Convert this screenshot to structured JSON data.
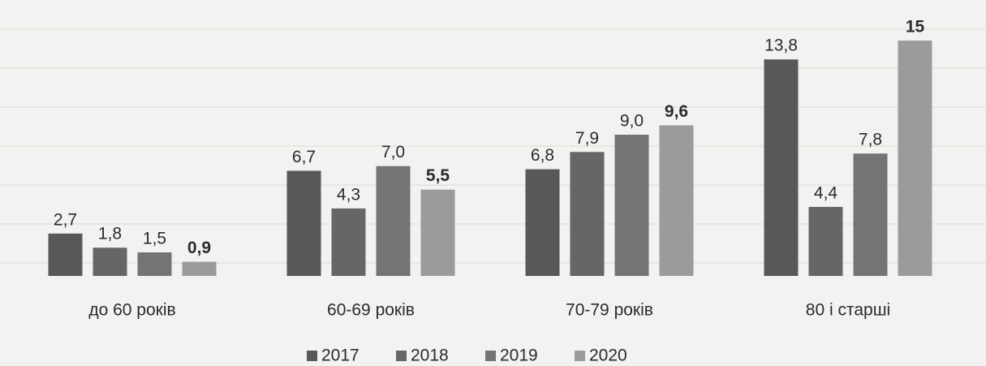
{
  "chart_data": {
    "type": "bar",
    "categories": [
      "до 60 років",
      "60-69 років",
      "70-79 років",
      "80 і старші"
    ],
    "series": [
      {
        "name": "2017",
        "color": "#585858",
        "values": [
          2.7,
          6.7,
          6.8,
          13.8
        ],
        "value_labels": [
          "2,7",
          "6,7",
          "6,8",
          "13,8"
        ]
      },
      {
        "name": "2018",
        "color": "#666666",
        "values": [
          1.8,
          4.3,
          7.9,
          4.4
        ],
        "value_labels": [
          "1,8",
          "4,3",
          "7,9",
          "4,4"
        ]
      },
      {
        "name": "2019",
        "color": "#747474",
        "values": [
          1.5,
          7.0,
          9.0,
          7.8
        ],
        "value_labels": [
          "1,5",
          "7,0",
          "9,0",
          "7,8"
        ]
      },
      {
        "name": "2020",
        "color": "#9b9b9b",
        "values": [
          0.9,
          5.5,
          9.6,
          15
        ],
        "value_labels": [
          "0,9",
          "5,5",
          "9,6",
          "15"
        ]
      }
    ],
    "legend": "bottom"
  }
}
